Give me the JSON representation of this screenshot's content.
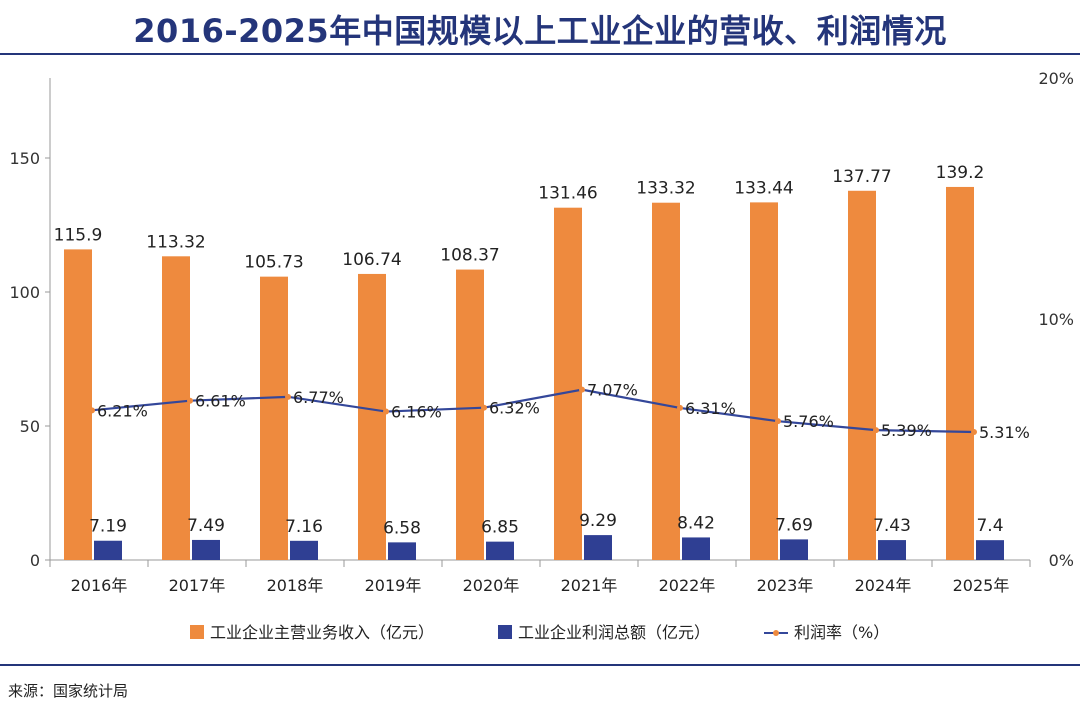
{
  "title": "2016-2025年中国规模以上工业企业的营收、利润情况",
  "source": "来源：国家统计局",
  "colors": {
    "revenue": "#ee8a3e",
    "profit": "#2f3f93",
    "margin": "#34479a",
    "margin_marker": "#ee8a3e",
    "title": "#24357a"
  },
  "chart_data": {
    "type": "bar",
    "categories": [
      "2016年",
      "2017年",
      "2018年",
      "2019年",
      "2020年",
      "2021年",
      "2022年",
      "2023年",
      "2024年",
      "2025年"
    ],
    "series": [
      {
        "name": "工业企业主营业务收入（亿元）",
        "type": "bar",
        "axis": "left",
        "values": [
          115.9,
          113.32,
          105.73,
          106.74,
          108.37,
          131.46,
          133.32,
          133.44,
          137.77,
          139.2
        ],
        "labels": [
          "115.9",
          "113.32",
          "105.73",
          "106.74",
          "108.37",
          "131.46",
          "133.32",
          "133.44",
          "137.77",
          "139.2"
        ]
      },
      {
        "name": "工业企业利润总额（亿元）",
        "type": "bar",
        "axis": "left",
        "values": [
          7.19,
          7.49,
          7.16,
          6.58,
          6.85,
          9.29,
          8.42,
          7.69,
          7.43,
          7.4
        ],
        "labels": [
          "7.19",
          "7.49",
          "7.16",
          "6.58",
          "6.85",
          "9.29",
          "8.42",
          "7.69",
          "7.43",
          "7.4"
        ]
      },
      {
        "name": "利润率（%）",
        "type": "line",
        "axis": "right",
        "values": [
          6.21,
          6.61,
          6.77,
          6.16,
          6.32,
          7.07,
          6.31,
          5.76,
          5.39,
          5.31
        ],
        "labels": [
          "6.21%",
          "6.61%",
          "6.77%",
          "6.16%",
          "6.32%",
          "7.07%",
          "6.31%",
          "5.76%",
          "5.39%",
          "5.31%"
        ]
      }
    ],
    "y_left": {
      "ylim": [
        0,
        180
      ],
      "ticks": [
        0,
        50,
        100,
        150
      ],
      "tick_labels": [
        "0",
        "50",
        "100",
        "150"
      ]
    },
    "y_right": {
      "ylim": [
        0,
        20
      ],
      "ticks": [
        0,
        10,
        20
      ],
      "tick_labels": [
        "0%",
        "10%",
        "20%"
      ]
    },
    "grid": false,
    "legend": "bottom"
  }
}
